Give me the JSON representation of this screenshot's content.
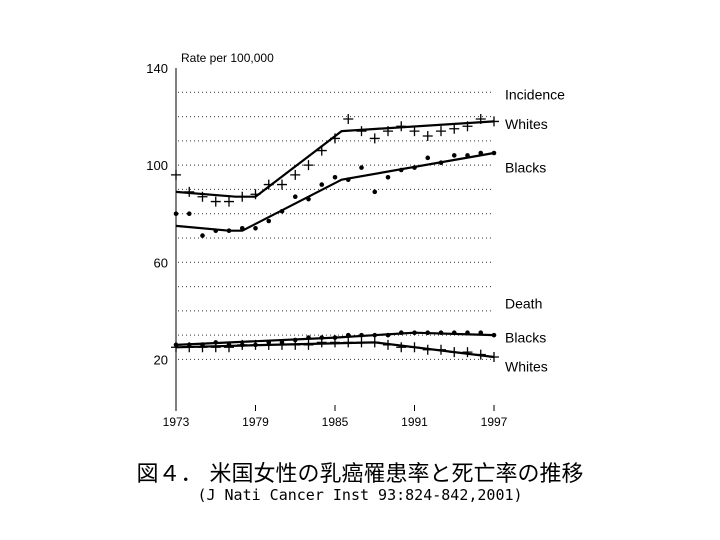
{
  "caption": {
    "title": "図４． 米国女性の乳癌罹患率と死亡率の推移",
    "citation": "(J Nati Cancer Inst 93:824-842,2001)"
  },
  "chart_data": {
    "type": "line",
    "ylabel": "Rate per 100,000",
    "xlim": [
      1973,
      1997
    ],
    "ylim": [
      0,
      140
    ],
    "x_ticks": [
      "1973",
      "1979",
      "1985",
      "1991",
      "1997"
    ],
    "y_ticks": [
      "140",
      "100",
      "60",
      "20"
    ],
    "gridlines": [
      20,
      30,
      40,
      50,
      60,
      70,
      80,
      90,
      100,
      110,
      120,
      130
    ],
    "grid": "dotted horizontal",
    "groups": [
      {
        "label": "Incidence",
        "level": 129
      },
      {
        "label": "Death",
        "level": 43
      }
    ],
    "series": [
      {
        "name": "Whites",
        "group": "Incidence",
        "marker": "plus",
        "label_level": 117,
        "trend": [
          [
            1973,
            89
          ],
          [
            1977.5,
            87
          ],
          [
            1979,
            87
          ],
          [
            1985.5,
            114
          ],
          [
            1997,
            118
          ]
        ],
        "points": [
          [
            1973,
            96
          ],
          [
            1974,
            89
          ],
          [
            1975,
            87
          ],
          [
            1976,
            85
          ],
          [
            1977,
            85
          ],
          [
            1978,
            87
          ],
          [
            1979,
            88
          ],
          [
            1980,
            92
          ],
          [
            1981,
            92
          ],
          [
            1982,
            96
          ],
          [
            1983,
            100
          ],
          [
            1984,
            106
          ],
          [
            1985,
            111
          ],
          [
            1986,
            119
          ],
          [
            1987,
            114
          ],
          [
            1988,
            111
          ],
          [
            1989,
            114
          ],
          [
            1990,
            116
          ],
          [
            1991,
            114
          ],
          [
            1992,
            112
          ],
          [
            1993,
            114
          ],
          [
            1994,
            115
          ],
          [
            1995,
            116
          ],
          [
            1996,
            119
          ],
          [
            1997,
            118
          ]
        ]
      },
      {
        "name": "Blacks",
        "group": "Incidence",
        "marker": "dot",
        "label_level": 99,
        "trend": [
          [
            1973,
            75
          ],
          [
            1977,
            73
          ],
          [
            1978,
            73
          ],
          [
            1985.5,
            94
          ],
          [
            1997,
            105
          ]
        ],
        "points": [
          [
            1973,
            80
          ],
          [
            1974,
            80
          ],
          [
            1975,
            71
          ],
          [
            1976,
            73
          ],
          [
            1977,
            73
          ],
          [
            1978,
            74
          ],
          [
            1979,
            74
          ],
          [
            1980,
            77
          ],
          [
            1981,
            81
          ],
          [
            1982,
            87
          ],
          [
            1983,
            86
          ],
          [
            1984,
            92
          ],
          [
            1985,
            95
          ],
          [
            1986,
            94
          ],
          [
            1987,
            99
          ],
          [
            1988,
            89
          ],
          [
            1989,
            95
          ],
          [
            1990,
            98
          ],
          [
            1991,
            99
          ],
          [
            1992,
            103
          ],
          [
            1993,
            101
          ],
          [
            1994,
            104
          ],
          [
            1995,
            104
          ],
          [
            1996,
            105
          ],
          [
            1997,
            105
          ]
        ]
      },
      {
        "name": "Blacks",
        "group": "Death",
        "marker": "dot",
        "label_level": 29,
        "trend": [
          [
            1973,
            26
          ],
          [
            1985,
            29
          ],
          [
            1991,
            31
          ],
          [
            1997,
            30
          ]
        ],
        "points": [
          [
            1973,
            26
          ],
          [
            1974,
            26
          ],
          [
            1975,
            26
          ],
          [
            1976,
            27
          ],
          [
            1977,
            26
          ],
          [
            1978,
            26
          ],
          [
            1979,
            26
          ],
          [
            1980,
            27
          ],
          [
            1981,
            27
          ],
          [
            1982,
            28
          ],
          [
            1983,
            29
          ],
          [
            1984,
            29
          ],
          [
            1985,
            29
          ],
          [
            1986,
            30
          ],
          [
            1987,
            30
          ],
          [
            1988,
            30
          ],
          [
            1989,
            30
          ],
          [
            1990,
            31
          ],
          [
            1991,
            31
          ],
          [
            1992,
            31
          ],
          [
            1993,
            31
          ],
          [
            1994,
            31
          ],
          [
            1995,
            31
          ],
          [
            1996,
            31
          ],
          [
            1997,
            30
          ]
        ]
      },
      {
        "name": "Whites",
        "group": "Death",
        "marker": "plus",
        "label_level": 17,
        "trend": [
          [
            1973,
            25
          ],
          [
            1980,
            26
          ],
          [
            1988,
            27
          ],
          [
            1997,
            21
          ]
        ],
        "points": [
          [
            1973,
            25
          ],
          [
            1974,
            25
          ],
          [
            1975,
            25
          ],
          [
            1976,
            25
          ],
          [
            1977,
            25
          ],
          [
            1978,
            26
          ],
          [
            1979,
            26
          ],
          [
            1980,
            26
          ],
          [
            1981,
            26
          ],
          [
            1982,
            26
          ],
          [
            1983,
            26
          ],
          [
            1984,
            27
          ],
          [
            1985,
            27
          ],
          [
            1986,
            27
          ],
          [
            1987,
            27
          ],
          [
            1988,
            27
          ],
          [
            1989,
            26
          ],
          [
            1990,
            25
          ],
          [
            1991,
            25
          ],
          [
            1992,
            24
          ],
          [
            1993,
            24
          ],
          [
            1994,
            23
          ],
          [
            1995,
            23
          ],
          [
            1996,
            22
          ],
          [
            1997,
            21
          ]
        ]
      }
    ]
  }
}
